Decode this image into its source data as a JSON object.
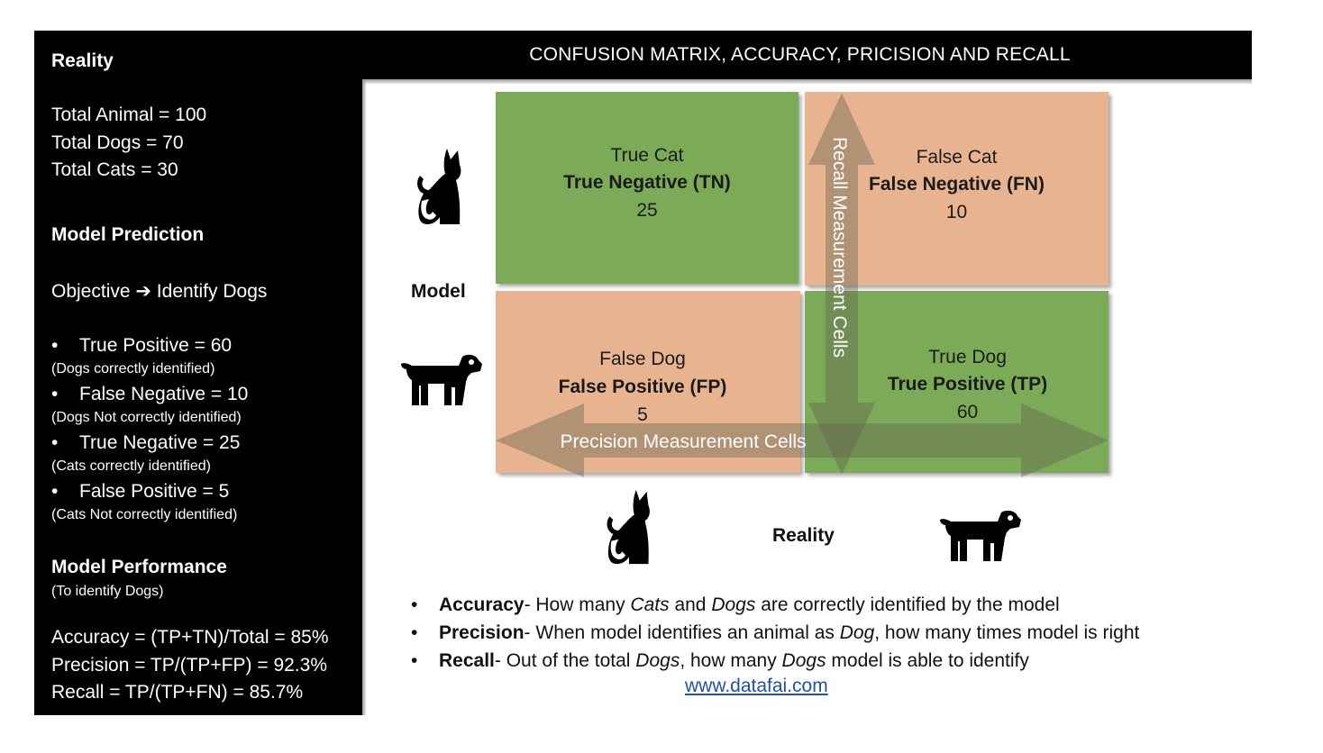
{
  "title": "CONFUSION MATRIX, ACCURACY, PRICISION AND RECALL",
  "left_panel": {
    "reality_heading": "Reality",
    "reality_lines": [
      "Total Animal = 100",
      "Total Dogs = 70",
      "Total Cats = 30"
    ],
    "prediction_heading": "Model Prediction",
    "objective": "Objective ➔ Identify Dogs",
    "bullets": [
      {
        "label": "True Positive = 60",
        "note": "(Dogs correctly identified)"
      },
      {
        "label": "False Negative = 10",
        "note": "(Dogs Not correctly identified)"
      },
      {
        "label": "True Negative = 25",
        "note": "(Cats correctly identified)"
      },
      {
        "label": "False Positive = 5",
        "note": "(Cats Not correctly identified)"
      }
    ],
    "performance_heading": "Model Performance",
    "performance_note": "(To identify Dogs)",
    "metrics": [
      "Accuracy = (TP+TN)/Total = 85%",
      "Precision = TP/(TP+FP) =  92.3%",
      "Recall = TP/(TP+FN) = 85.7%"
    ]
  },
  "matrix": {
    "tn": {
      "line1": "True Cat",
      "line2": "True Negative (TN)",
      "value": "25"
    },
    "fn": {
      "line1": "False Cat",
      "line2": "False Negative (FN)",
      "value": "10"
    },
    "fp": {
      "line1": "False Dog",
      "line2": "False Positive (FP)",
      "value": "5"
    },
    "tp": {
      "line1": "True Dog",
      "line2": "True Positive (TP)",
      "value": "60"
    },
    "recall_arrow_label": "Recall Measurement Cells",
    "precision_arrow_label": "Precision Measurement Cells",
    "model_label": "Model",
    "reality_label": "Reality"
  },
  "definitions": [
    {
      "term": "Accuracy",
      "text_parts": [
        "- How many ",
        "Cats",
        " and ",
        "Dogs",
        " are correctly identified by the model"
      ]
    },
    {
      "term": "Precision",
      "text_parts": [
        "- When model identifies an animal as ",
        "Dog",
        ", how many times model is right"
      ]
    },
    {
      "term": "Recall",
      "text_parts": [
        "- Out of the total ",
        "Dogs",
        ", how many ",
        "Dogs",
        " model is able to identify"
      ]
    }
  ],
  "website": "www.datafai.com",
  "colors": {
    "green": "#7bab57",
    "orange": "#e8b48f",
    "panel": "#000000",
    "link": "#1f4fb0"
  },
  "icons": [
    "cat-icon",
    "dog-icon"
  ]
}
